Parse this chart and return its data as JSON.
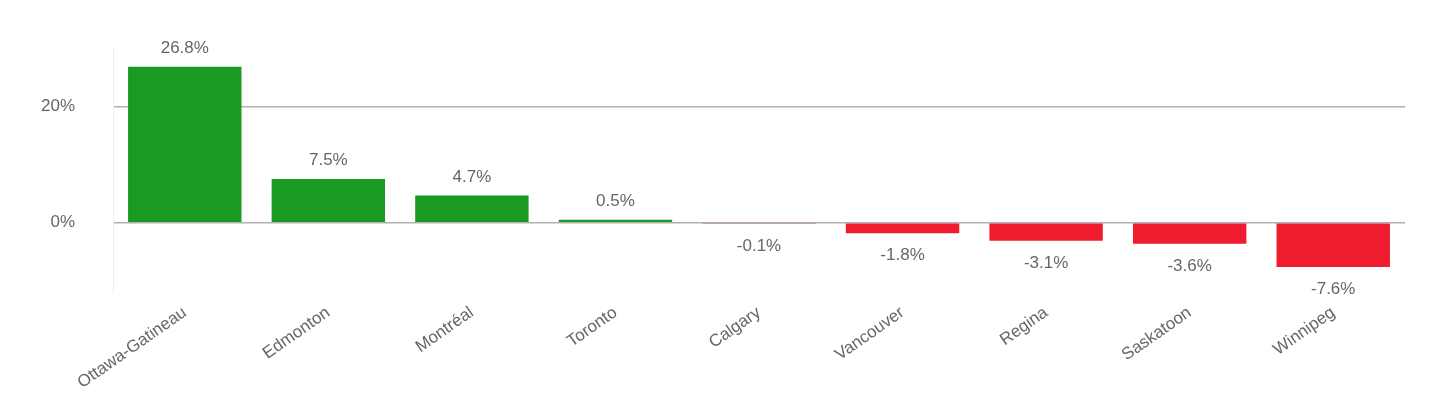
{
  "chart_data": {
    "type": "bar",
    "categories": [
      "Ottawa-Gatineau",
      "Edmonton",
      "Montréal",
      "Toronto",
      "Calgary",
      "Vancouver",
      "Regina",
      "Saskatoon",
      "Winnipeg"
    ],
    "values": [
      26.8,
      7.5,
      4.7,
      0.5,
      -0.1,
      -1.8,
      -3.1,
      -3.6,
      -7.6
    ],
    "colors": [
      "#1a9a23",
      "#1a9a23",
      "#1a9a23",
      "#1a9a23",
      "#8b1015",
      "#ee1c2e",
      "#ee1c2e",
      "#ee1c2e",
      "#ee1c2e"
    ],
    "value_labels": [
      "26.8%",
      "7.5%",
      "4.7%",
      "0.5%",
      "-0.1%",
      "-1.8%",
      "-3.1%",
      "-3.6%",
      "-7.6%"
    ],
    "ylim": [
      -12,
      30
    ],
    "yticks": [
      {
        "value": 0,
        "label": "0%"
      },
      {
        "value": 20,
        "label": "20%"
      }
    ],
    "grid": "y",
    "legend": false
  }
}
